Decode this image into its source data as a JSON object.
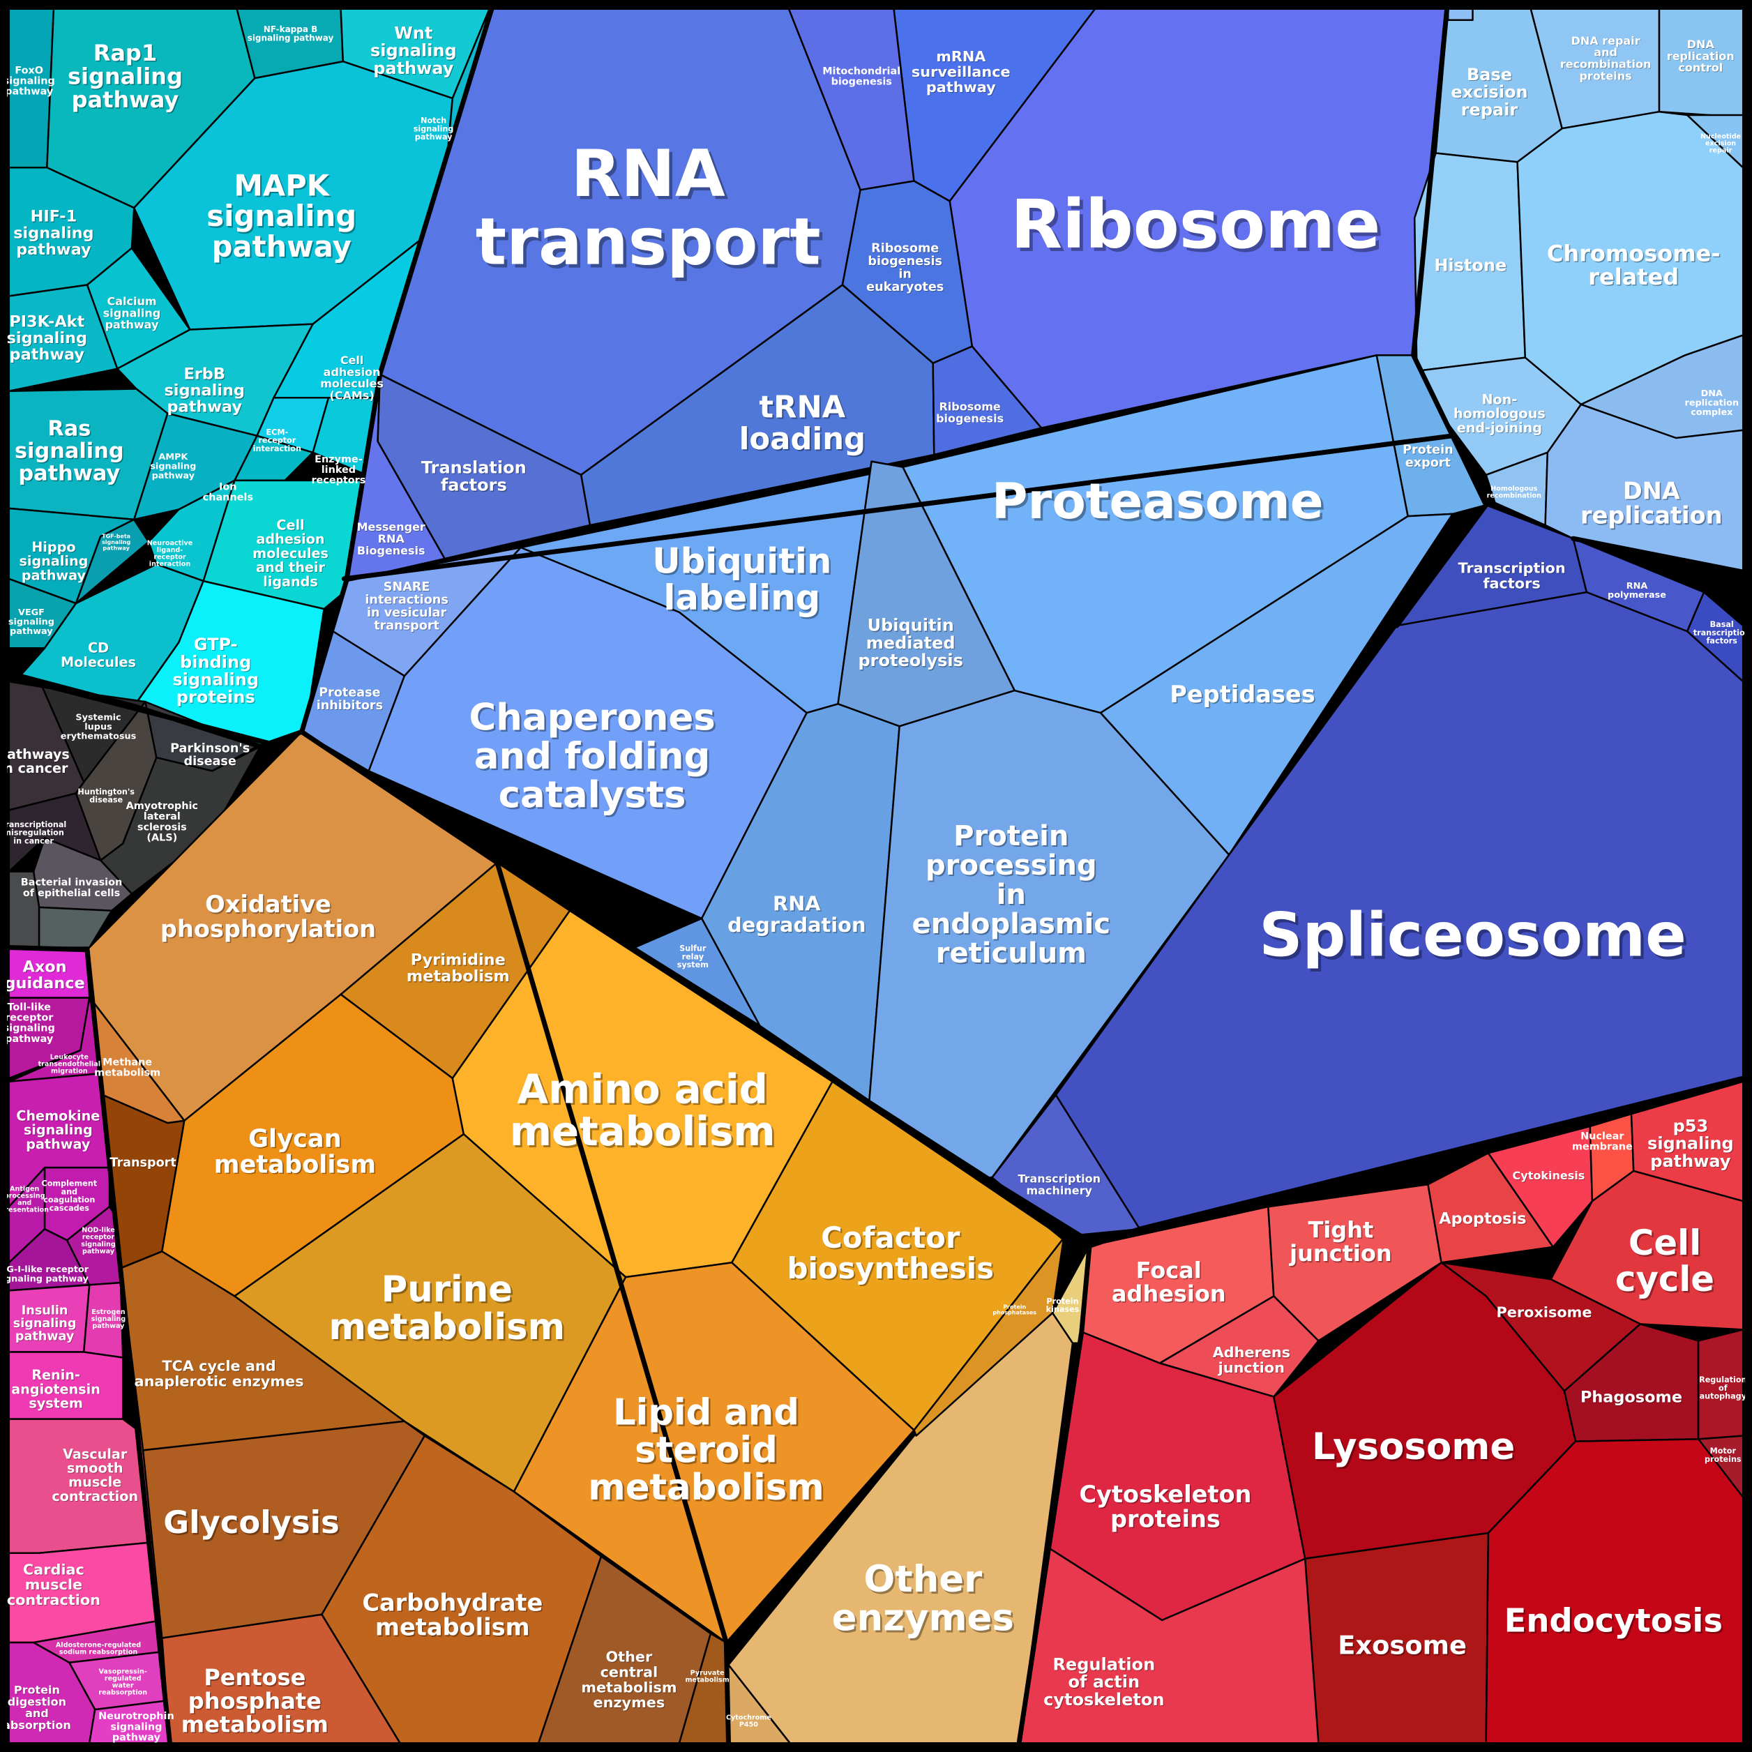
{
  "colors": {
    "signaling": "#17c2cf",
    "translation": "#5c70e3",
    "ribosome": "#6471f0",
    "dna": "#8ec9f5",
    "proteostasis": "#72aaf3",
    "spliceosome": "#4351c3",
    "disease": "#3b3b3b",
    "immune": "#c31aa6",
    "metabolism": "#e99a22",
    "cellular": "#e0334c"
  },
  "pathways": [
    {
      "id": "foxo",
      "label": [
        "FoxO",
        "signaling",
        "pathway"
      ],
      "color": "#04a6b6"
    },
    {
      "id": "rap1",
      "label": [
        "Rap1",
        "signaling",
        "pathway"
      ],
      "color": "#09b8bd"
    },
    {
      "id": "nfkb",
      "label": [
        "NF-kappa B",
        "signaling pathway"
      ],
      "color": "#07a9b3"
    },
    {
      "id": "wnt",
      "label": [
        "Wnt",
        "signaling",
        "pathway"
      ],
      "color": "#12c9d4"
    },
    {
      "id": "mapk",
      "label": [
        "MAPK",
        "signaling",
        "pathway"
      ],
      "color": "#0ac3d8"
    },
    {
      "id": "notch",
      "label": [
        "Notch",
        "signaling",
        "pathway"
      ],
      "color": "#0fb9cc"
    },
    {
      "id": "hif1",
      "label": [
        "HIF-1",
        "signaling",
        "pathway"
      ],
      "color": "#04b5c4"
    },
    {
      "id": "calcium",
      "label": [
        "Calcium",
        "signaling",
        "pathway"
      ],
      "color": "#09c2d0"
    },
    {
      "id": "pi3k",
      "label": [
        "PI3K-Akt",
        "signaling",
        "pathway"
      ],
      "color": "#0bb8c8"
    },
    {
      "id": "erbb",
      "label": [
        "ErbB",
        "signaling",
        "pathway"
      ],
      "color": "#10c5d0"
    },
    {
      "id": "cams",
      "label": [
        "Cell",
        "adhesion",
        "molecules",
        "(CAMs)"
      ],
      "color": "#07cbe3"
    },
    {
      "id": "ras",
      "label": [
        "Ras",
        "signaling",
        "pathway"
      ],
      "color": "#0bb4c1"
    },
    {
      "id": "ampk",
      "label": [
        "AMPK",
        "signaling",
        "pathway"
      ],
      "color": "#07b0c2"
    },
    {
      "id": "ecm",
      "label": [
        "ECM-",
        "receptor",
        "interaction"
      ],
      "color": "#11cde8"
    },
    {
      "id": "enzyme_receptors",
      "label": [
        "Enzyme-",
        "linked",
        "receptors"
      ],
      "color": "#0ac9db"
    },
    {
      "id": "ion",
      "label": [
        "Ion",
        "channels"
      ],
      "color": "#04b9c6"
    },
    {
      "id": "hippo",
      "label": [
        "Hippo",
        "signaling",
        "pathway"
      ],
      "color": "#04adbc"
    },
    {
      "id": "tgfb",
      "label": [
        "TGF-beta",
        "signaling",
        "pathway"
      ],
      "color": "#099fb0"
    },
    {
      "id": "neuroactive",
      "label": [
        "Neuroactive",
        "ligand-",
        "receptor",
        "interaction"
      ],
      "color": "#08c5cf"
    },
    {
      "id": "cell_adhesion_ligands",
      "label": [
        "Cell",
        "adhesion",
        "molecules",
        "and their",
        "ligands"
      ],
      "color": "#0ad6d4"
    },
    {
      "id": "vegf",
      "label": [
        "VEGF",
        "signaling",
        "pathway"
      ],
      "color": "#07a2ad"
    },
    {
      "id": "cd",
      "label": [
        "CD",
        "Molecules"
      ],
      "color": "#0bbfcc"
    },
    {
      "id": "gtp",
      "label": [
        "GTP-",
        "binding",
        "signaling",
        "proteins"
      ],
      "color": "#0af1fb"
    },
    {
      "id": "rna_transport",
      "label": [
        "RNA",
        "transport"
      ],
      "color": "#5977e4"
    },
    {
      "id": "mito_bio",
      "label": [
        "Mitochondrial",
        "biogenesis"
      ],
      "color": "#5e6ee6"
    },
    {
      "id": "mrna_surv",
      "label": [
        "mRNA",
        "surveillance",
        "pathway"
      ],
      "color": "#4b72ec"
    },
    {
      "id": "ribosome",
      "label": [
        "Ribosome"
      ],
      "color": "#6471f0"
    },
    {
      "id": "rib_euk",
      "label": [
        "Ribosome",
        "biogenesis",
        "in",
        "eukaryotes"
      ],
      "color": "#4b75e1"
    },
    {
      "id": "trna",
      "label": [
        "tRNA",
        "loading"
      ],
      "color": "#5078d9"
    },
    {
      "id": "rib_bio",
      "label": [
        "Ribosome",
        "biogenesis"
      ],
      "color": "#4f6ee2"
    },
    {
      "id": "trans_factors",
      "label": [
        "Translation",
        "factors"
      ],
      "color": "#5670d4"
    },
    {
      "id": "messenger",
      "label": [
        "Messenger",
        "RNA",
        "Biogenesis"
      ],
      "color": "#6575ec"
    },
    {
      "id": "base_exc",
      "label": [
        "Base",
        "excision",
        "repair"
      ],
      "color": "#8cc6f2"
    },
    {
      "id": "dna_repair",
      "label": [
        "DNA repair",
        "and",
        "recombination",
        "proteins"
      ],
      "color": "#90c6f4"
    },
    {
      "id": "dna_rep_ctrl",
      "label": [
        "DNA",
        "replication",
        "control"
      ],
      "color": "#8ac4f0"
    },
    {
      "id": "histone",
      "label": [
        "Histone"
      ],
      "color": "#94cff8"
    },
    {
      "id": "chromosome",
      "label": [
        "Chromosome-",
        "related"
      ],
      "color": "#8ed0fa"
    },
    {
      "id": "nucleotide",
      "label": [
        "Nucleotide",
        "excision",
        "repair"
      ],
      "color": "#87c3f3"
    },
    {
      "id": "nhej",
      "label": [
        "Non-",
        "homologous",
        "end-joining"
      ],
      "color": "#93cbf6"
    },
    {
      "id": "dna_rep_complex",
      "label": [
        "DNA",
        "replication",
        "complex"
      ],
      "color": "#8bbcef"
    },
    {
      "id": "homologous",
      "label": [
        "Homologous",
        "recombination"
      ],
      "color": "#91c3f2"
    },
    {
      "id": "dna_replication",
      "label": [
        "DNA",
        "replication"
      ],
      "color": "#8cbaf3"
    },
    {
      "id": "mismatch",
      "label": [],
      "color": "#8fc0f5"
    },
    {
      "id": "protein_export",
      "label": [
        "Protein",
        "export"
      ],
      "color": "#6eb0ec"
    },
    {
      "id": "proteasome",
      "label": [
        "Proteasome"
      ],
      "color": "#71b2f8"
    },
    {
      "id": "ubiquitin_labeling",
      "label": [
        "Ubiquitin",
        "labeling"
      ],
      "color": "#6ca8f4"
    },
    {
      "id": "ubiquitin_mediated",
      "label": [
        "Ubiquitin",
        "mediated",
        "proteolysis"
      ],
      "color": "#6fa1de"
    },
    {
      "id": "snare",
      "label": [
        "SNARE",
        "interactions",
        "in vesicular",
        "transport"
      ],
      "color": "#80a5f2"
    },
    {
      "id": "protease_inh",
      "label": [
        "Protease",
        "inhibitors"
      ],
      "color": "#6c99ec"
    },
    {
      "id": "chaperones",
      "label": [
        "Chaperones",
        "and folding",
        "catalysts"
      ],
      "color": "#72a0f8"
    },
    {
      "id": "peptidases",
      "label": [
        "Peptidases"
      ],
      "color": "#72b0f5"
    },
    {
      "id": "rna_degradation",
      "label": [
        "RNA",
        "degradation"
      ],
      "color": "#67a0e3"
    },
    {
      "id": "sulfur",
      "label": [
        "Sulfur",
        "relay",
        "system"
      ],
      "color": "#6095e2"
    },
    {
      "id": "protein_er",
      "label": [
        "Protein",
        "processing",
        "in",
        "endoplasmic",
        "reticulum"
      ],
      "color": "#73a7ea"
    },
    {
      "id": "transcription_factors",
      "label": [
        "Transcription",
        "factors"
      ],
      "color": "#3f4fbe"
    },
    {
      "id": "rna_polymerase",
      "label": [
        "RNA",
        "polymerase"
      ],
      "color": "#4857c9"
    },
    {
      "id": "basal_tf",
      "label": [
        "Basal",
        "transcription",
        "factors"
      ],
      "color": "#3b4bc2"
    },
    {
      "id": "spliceosome",
      "label": [
        "Spliceosome"
      ],
      "color": "#4351c3"
    },
    {
      "id": "transcription_machinery",
      "label": [
        "Transcription",
        "machinery"
      ],
      "color": "#5261cc"
    },
    {
      "id": "pathways_cancer",
      "label": [
        "Pathways",
        "in cancer"
      ],
      "color": "#3a3037"
    },
    {
      "id": "sle",
      "label": [
        "Systemic",
        "lupus",
        "erythematosus"
      ],
      "color": "#2b2b2b"
    },
    {
      "id": "parkinson",
      "label": [
        "Parkinson's",
        "disease"
      ],
      "color": "#383c42"
    },
    {
      "id": "huntington",
      "label": [
        "Huntington's",
        "disease"
      ],
      "color": "#4a4440"
    },
    {
      "id": "als",
      "label": [
        "Amyotrophic",
        "lateral",
        "sclerosis",
        "(ALS)"
      ],
      "color": "#363838"
    },
    {
      "id": "misregulation",
      "label": [
        "Transcriptional",
        "misregulation",
        "in cancer"
      ],
      "color": "#2e2530"
    },
    {
      "id": "bacterial",
      "label": [
        "Bacterial invasion",
        "of epithelial cells"
      ],
      "color": "#5b5560"
    },
    {
      "id": "disease_misc",
      "label": [],
      "color": "#4a4b4d"
    },
    {
      "id": "disease_misc2",
      "label": [],
      "color": "#556061"
    },
    {
      "id": "axon",
      "label": [
        "Axon",
        "guidance"
      ],
      "color": "#e02ad8"
    },
    {
      "id": "toll",
      "label": [
        "Toll-like",
        "receptor",
        "signaling",
        "pathway"
      ],
      "color": "#b6189e"
    },
    {
      "id": "leukocyte",
      "label": [
        "Leukocyte",
        "transendothelial",
        "migration"
      ],
      "color": "#c01aa6"
    },
    {
      "id": "chemokine",
      "label": [
        "Chemokine",
        "signaling",
        "pathway"
      ],
      "color": "#c81fb0"
    },
    {
      "id": "antigen",
      "label": [
        "Antigen",
        "processing",
        "and",
        "presentation"
      ],
      "color": "#b91ba9"
    },
    {
      "id": "complement",
      "label": [
        "Complement",
        "and",
        "coagulation",
        "cascades"
      ],
      "color": "#c21cae"
    },
    {
      "id": "rigi",
      "label": [
        "RIG-I-like receptor",
        "signaling pathway"
      ],
      "color": "#a5159a"
    },
    {
      "id": "nod",
      "label": [
        "NOD-like",
        "receptor",
        "signaling",
        "pathway"
      ],
      "color": "#b3199f"
    },
    {
      "id": "insulin",
      "label": [
        "Insulin",
        "signaling",
        "pathway"
      ],
      "color": "#ea40b7"
    },
    {
      "id": "estrogen",
      "label": [
        "Estrogen",
        "signaling",
        "pathway"
      ],
      "color": "#e43cb0"
    },
    {
      "id": "renin",
      "label": [
        "Renin-",
        "angiotensin",
        "system"
      ],
      "color": "#f03ab3"
    },
    {
      "id": "vascular",
      "label": [
        "Vascular",
        "smooth",
        "muscle",
        "contraction"
      ],
      "color": "#e84f8c"
    },
    {
      "id": "cardiac",
      "label": [
        "Cardiac",
        "muscle",
        "contraction"
      ],
      "color": "#fa4aa4"
    },
    {
      "id": "aldosterone",
      "label": [
        "Aldosterone-regulated",
        "sodium reabsorption"
      ],
      "color": "#d832aa"
    },
    {
      "id": "vasopressin",
      "label": [
        "Vasopressin-",
        "regulated",
        "water",
        "reabsorption"
      ],
      "color": "#e040be"
    },
    {
      "id": "protein_digestion",
      "label": [
        "Protein",
        "digestion",
        "and",
        "absorption"
      ],
      "color": "#d02ab4"
    },
    {
      "id": "neurotrophin",
      "label": [
        "Neurotrophin",
        "signaling",
        "pathway"
      ],
      "color": "#e43dc6"
    },
    {
      "id": "oxphos",
      "label": [
        "Oxidative",
        "phosphorylation"
      ],
      "color": "#dc9244"
    },
    {
      "id": "pyrimidine",
      "label": [
        "Pyrimidine",
        "metabolism"
      ],
      "color": "#d88a1c"
    },
    {
      "id": "methane",
      "label": [
        "Methane",
        "metabolism"
      ],
      "color": "#d88138"
    },
    {
      "id": "transport",
      "label": [
        "Transport"
      ],
      "color": "#944406"
    },
    {
      "id": "glycan",
      "label": [
        "Glycan",
        "metabolism"
      ],
      "color": "#ed9015"
    },
    {
      "id": "amino_acid",
      "label": [
        "Amino acid",
        "metabolism"
      ],
      "color": "#fdb22a"
    },
    {
      "id": "purine",
      "label": [
        "Purine",
        "metabolism"
      ],
      "color": "#dc9a22"
    },
    {
      "id": "cofactor",
      "label": [
        "Cofactor",
        "biosynthesis"
      ],
      "color": "#eda21b"
    },
    {
      "id": "lipid",
      "label": [
        "Lipid and",
        "steroid",
        "metabolism"
      ],
      "color": "#ee9325"
    },
    {
      "id": "tca",
      "label": [
        "TCA cycle and",
        "anaplerotic enzymes"
      ],
      "color": "#b5641d"
    },
    {
      "id": "glycolysis",
      "label": [
        "Glycolysis"
      ],
      "color": "#af5d21"
    },
    {
      "id": "carbohydrate",
      "label": [
        "Carbohydrate",
        "metabolism"
      ],
      "color": "#c0651e"
    },
    {
      "id": "other_central",
      "label": [
        "Other",
        "central",
        "metabolism",
        "enzymes"
      ],
      "color": "#a05a28"
    },
    {
      "id": "pyruvate",
      "label": [
        "Pyruvate",
        "metabolism"
      ],
      "color": "#a2591c"
    },
    {
      "id": "pentose",
      "label": [
        "Pentose",
        "phosphate",
        "metabolism"
      ],
      "color": "#cc5a32"
    },
    {
      "id": "cyp450",
      "label": [
        "Cytochrome",
        "P450"
      ],
      "color": "#dba962"
    },
    {
      "id": "other_enzymes",
      "label": [
        "Other",
        "enzymes"
      ],
      "color": "#e5b770"
    },
    {
      "id": "protein_kinases",
      "label": [
        "Protein",
        "kinases"
      ],
      "color": "#e9cf7c"
    },
    {
      "id": "protein_phosphatases",
      "label": [
        "Protein",
        "phosphatases"
      ],
      "color": "#dc9425"
    },
    {
      "id": "focal",
      "label": [
        "Focal",
        "adhesion"
      ],
      "color": "#f65b5b"
    },
    {
      "id": "tight",
      "label": [
        "Tight",
        "junction"
      ],
      "color": "#f05558"
    },
    {
      "id": "apoptosis",
      "label": [
        "Apoptosis"
      ],
      "color": "#e84346"
    },
    {
      "id": "cytokinesis",
      "label": [
        "Cytokinesis"
      ],
      "color": "#f83e55"
    },
    {
      "id": "nuclear_membrane",
      "label": [
        "Nuclear",
        "membrane"
      ],
      "color": "#fc5245"
    },
    {
      "id": "p53",
      "label": [
        "p53",
        "signaling",
        "pathway"
      ],
      "color": "#ec3c48"
    },
    {
      "id": "cell_cycle",
      "label": [
        "Cell",
        "cycle"
      ],
      "color": "#e3373f"
    },
    {
      "id": "adherens",
      "label": [
        "Adherens",
        "junction"
      ],
      "color": "#ee4d57"
    },
    {
      "id": "peroxisome",
      "label": [
        "Peroxisome"
      ],
      "color": "#b1121d"
    },
    {
      "id": "phagosome",
      "label": [
        "Phagosome"
      ],
      "color": "#a50f22"
    },
    {
      "id": "regulation_autophagy",
      "label": [
        "Regulation",
        "of",
        "autophagy"
      ],
      "color": "#ac1626"
    },
    {
      "id": "motor",
      "label": [
        "Motor",
        "proteins"
      ],
      "color": "#a61c2a"
    },
    {
      "id": "cytoskeleton",
      "label": [
        "Cytoskeleton",
        "proteins"
      ],
      "color": "#df2643"
    },
    {
      "id": "lysosome",
      "label": [
        "Lysosome"
      ],
      "color": "#b40718"
    },
    {
      "id": "exosome",
      "label": [
        "Exosome"
      ],
      "color": "#ad1717"
    },
    {
      "id": "endocytosis",
      "label": [
        "Endocytosis"
      ],
      "color": "#c40617"
    },
    {
      "id": "regulation_actin",
      "label": [
        "Regulation",
        "of actin",
        "cytoskeleton"
      ],
      "color": "#e9394e"
    }
  ]
}
